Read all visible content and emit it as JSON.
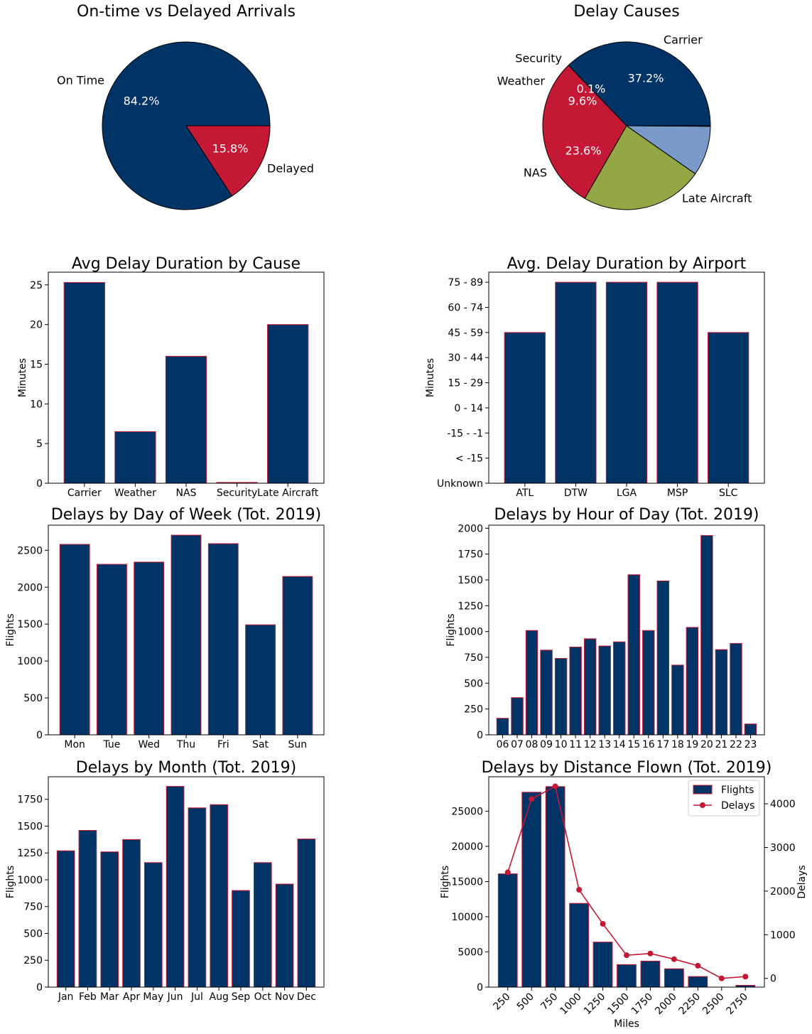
{
  "colors": {
    "navy": "#003366",
    "crimson": "#c41834",
    "lightblue": "#7a9acb",
    "olive": "#93a744",
    "black": "#000000"
  },
  "chart_data": [
    {
      "id": "pie1",
      "type": "pie",
      "title": "On-time vs Delayed Arrivals",
      "labels": [
        "On Time",
        "Delayed"
      ],
      "values": [
        84.2,
        15.8
      ],
      "pct_labels": [
        "84.2%",
        "15.8%"
      ],
      "colors": [
        "#003366",
        "#c41834"
      ]
    },
    {
      "id": "pie2",
      "type": "pie",
      "title": "Delay Causes",
      "labels": [
        "Carrier",
        "Late Aircraft",
        "NAS",
        "Weather",
        "Security"
      ],
      "values": [
        37.2,
        29.5,
        23.6,
        9.6,
        0.1
      ],
      "pct_labels": [
        "37.2%",
        "29.5%",
        "23.6%",
        "9.6%",
        "0.1%"
      ],
      "colors": [
        "#003366",
        "#c41834",
        "#93a744",
        "#7a9acb",
        "#7a9acb"
      ]
    },
    {
      "id": "bar_cause",
      "type": "bar",
      "title": "Avg Delay Duration by Cause",
      "xlabel": "",
      "ylabel": "Minutes",
      "categories": [
        "Carrier",
        "Weather",
        "NAS",
        "Security",
        "Late Aircraft"
      ],
      "values": [
        25.3,
        6.5,
        16.0,
        0.1,
        20.0
      ],
      "ylim": [
        0,
        26.6
      ],
      "yticks": [
        0,
        5,
        10,
        15,
        20,
        25
      ]
    },
    {
      "id": "bar_airport",
      "type": "bar",
      "title": "Avg. Delay Duration by Airport",
      "xlabel": "",
      "ylabel": "Minutes",
      "categories": [
        "ATL",
        "DTW",
        "LGA",
        "MSP",
        "SLC"
      ],
      "values": [
        6,
        8,
        8,
        8,
        6
      ],
      "ytick_labels": [
        "Unknown",
        "< -15",
        "-15 - -1",
        "0 - 14",
        "15 - 29",
        "30 - 44",
        "45 - 59",
        "60 - 74",
        "75 - 89"
      ],
      "ylim": [
        0,
        8.4
      ]
    },
    {
      "id": "bar_dow",
      "type": "bar",
      "title": "Delays by Day of Week (Tot. 2019)",
      "xlabel": "",
      "ylabel": "Flights",
      "categories": [
        "Mon",
        "Tue",
        "Wed",
        "Thu",
        "Fri",
        "Sat",
        "Sun"
      ],
      "values": [
        2580,
        2310,
        2340,
        2705,
        2590,
        1490,
        2145
      ],
      "ylim": [
        0,
        2840
      ],
      "yticks": [
        0,
        500,
        1000,
        1500,
        2000,
        2500
      ]
    },
    {
      "id": "bar_hour",
      "type": "bar",
      "title": "Delays by Hour of Day (Tot. 2019)",
      "xlabel": "",
      "ylabel": "Flights",
      "categories": [
        "06",
        "07",
        "08",
        "09",
        "10",
        "11",
        "12",
        "13",
        "14",
        "15",
        "16",
        "17",
        "18",
        "19",
        "20",
        "21",
        "22",
        "23"
      ],
      "values": [
        160,
        360,
        1010,
        820,
        740,
        850,
        930,
        860,
        900,
        1550,
        1010,
        1490,
        675,
        1040,
        1930,
        825,
        885,
        105
      ],
      "ylim": [
        0,
        2030
      ],
      "yticks": [
        0,
        250,
        500,
        750,
        1000,
        1250,
        1500,
        1750,
        2000
      ]
    },
    {
      "id": "bar_month",
      "type": "bar",
      "title": "Delays by Month (Tot. 2019)",
      "xlabel": "",
      "ylabel": "Flights",
      "categories": [
        "Jan",
        "Feb",
        "Mar",
        "Apr",
        "May",
        "Jun",
        "Jul",
        "Aug",
        "Sep",
        "Oct",
        "Nov",
        "Dec"
      ],
      "values": [
        1270,
        1460,
        1260,
        1375,
        1160,
        1870,
        1670,
        1700,
        900,
        1160,
        960,
        1380
      ],
      "ylim": [
        0,
        1960
      ],
      "yticks": [
        0,
        250,
        500,
        750,
        1000,
        1250,
        1500,
        1750
      ]
    },
    {
      "id": "combo_distance",
      "type": "bar",
      "title": "Delays by Distance Flown (Tot. 2019)",
      "xlabel": "Miles",
      "ylabel": "Flights",
      "ylabel2": "Delays",
      "categories": [
        "250",
        "500",
        "750",
        "1000",
        "1250",
        "1500",
        "1750",
        "2000",
        "2250",
        "2500",
        "2750"
      ],
      "series": [
        {
          "name": "Flights",
          "kind": "bar",
          "values": [
            16100,
            27700,
            28500,
            11900,
            6400,
            3200,
            3700,
            2600,
            1500,
            0,
            250
          ]
        },
        {
          "name": "Delays",
          "kind": "line",
          "values": [
            2430,
            4110,
            4400,
            2030,
            1250,
            530,
            570,
            440,
            290,
            0,
            40
          ]
        }
      ],
      "ylim": [
        0,
        29900
      ],
      "yticks": [
        0,
        5000,
        10000,
        15000,
        20000,
        25000
      ],
      "ylim2": [
        -200,
        4620
      ],
      "yticks2": [
        0,
        1000,
        2000,
        3000,
        4000
      ],
      "legend_position": "top-right"
    }
  ]
}
